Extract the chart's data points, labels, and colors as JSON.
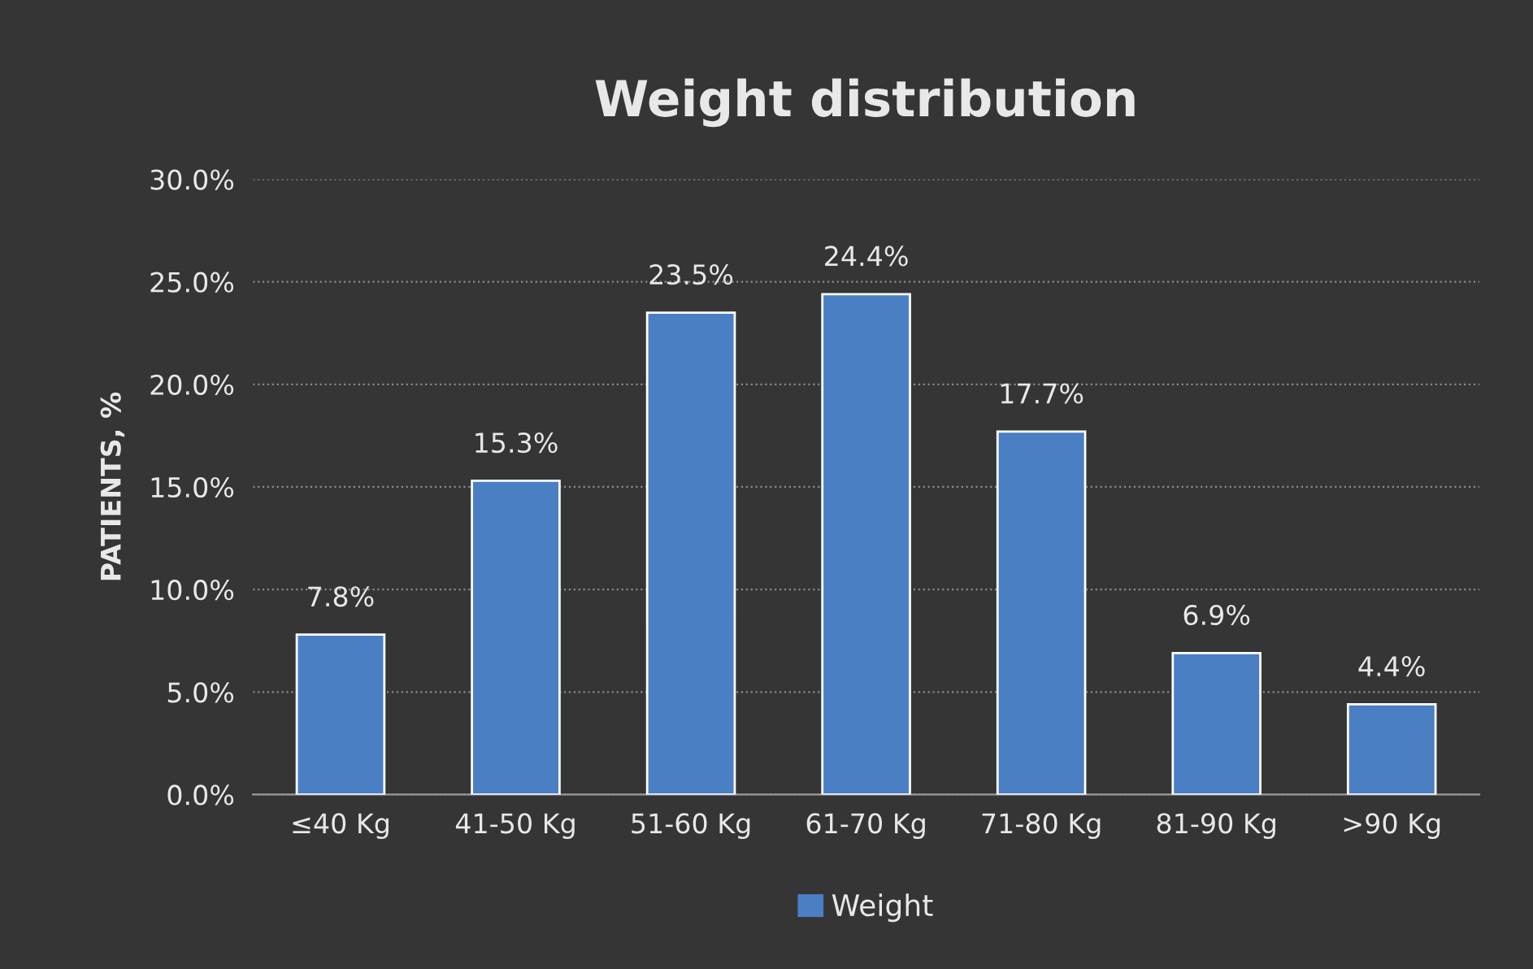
{
  "chart_data": {
    "type": "bar",
    "title": "Weight distribution",
    "ylabel": "PATIENTS, %",
    "categories": [
      "≤40 Kg",
      "41-50 Kg",
      "51-60 Kg",
      "61-70 Kg",
      "71-80 Kg",
      "81-90 Kg",
      ">90 Kg"
    ],
    "series": [
      {
        "name": "Weight",
        "color": "#4a7fc4",
        "values": [
          7.8,
          15.3,
          23.5,
          24.4,
          17.7,
          6.9,
          4.4
        ],
        "value_labels": [
          "7.8%",
          "15.3%",
          "23.5%",
          "24.4%",
          "17.7%",
          "6.9%",
          "4.4%"
        ]
      }
    ],
    "ylim": [
      0,
      30
    ],
    "yticks": [
      {
        "value": 0,
        "label": "0.0%"
      },
      {
        "value": 5,
        "label": "5.0%"
      },
      {
        "value": 10,
        "label": "10.0%"
      },
      {
        "value": 15,
        "label": "15.0%"
      },
      {
        "value": 20,
        "label": "20.0%"
      },
      {
        "value": 25,
        "label": "25.0%"
      },
      {
        "value": 30,
        "label": "30.0%"
      }
    ],
    "grid": "y",
    "legend": "bottom"
  }
}
